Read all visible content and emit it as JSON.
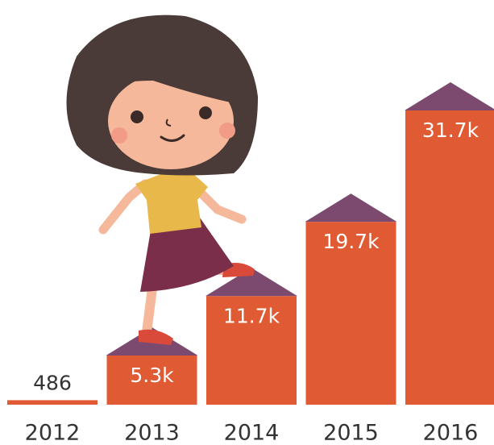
{
  "chart_data": {
    "type": "bar",
    "categories": [
      "2012",
      "2013",
      "2014",
      "2015",
      "2016"
    ],
    "values": [
      486,
      5300,
      11700,
      19700,
      31700
    ],
    "value_labels": [
      "486",
      "5.3k",
      "11.7k",
      "19.7k",
      "31.7k"
    ],
    "color": "#e05a33",
    "roof_color": "#7d4a6f"
  }
}
